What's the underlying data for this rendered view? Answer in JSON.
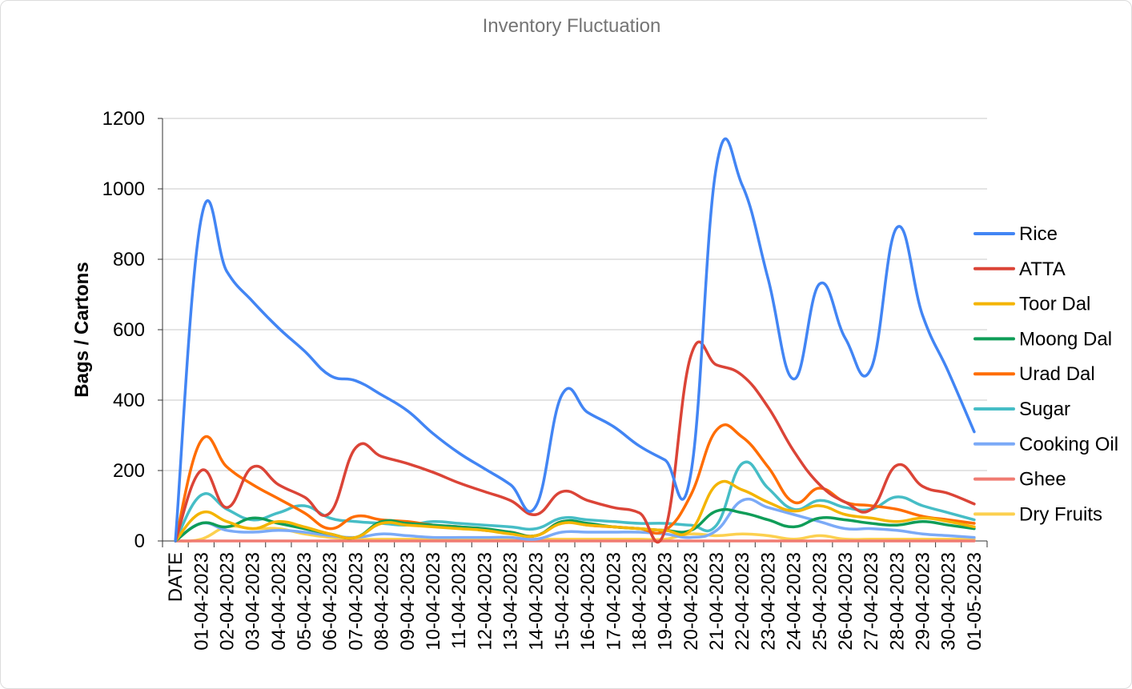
{
  "chart_data": {
    "type": "line",
    "title": "Inventory Fluctuation",
    "xlabel": "",
    "ylabel": "Bags / Cartons",
    "ylim": [
      0,
      1200
    ],
    "yticks": [
      0,
      200,
      400,
      600,
      800,
      1000,
      1200
    ],
    "grid": true,
    "legend_position": "right",
    "categories": [
      "DATE",
      "01-04-2023",
      "02-04-2023",
      "03-04-2023",
      "04-04-2023",
      "05-04-2023",
      "06-04-2023",
      "07-04-2023",
      "08-04-2023",
      "09-04-2023",
      "10-04-2023",
      "11-04-2023",
      "12-04-2023",
      "13-04-2023",
      "14-04-2023",
      "15-04-2023",
      "16-04-2023",
      "17-04-2023",
      "18-04-2023",
      "19-04-2023",
      "20-04-2023",
      "21-04-2023",
      "22-04-2023",
      "23-04-2023",
      "24-04-2023",
      "25-04-2023",
      "26-04-2023",
      "27-04-2023",
      "28-04-2023",
      "29-04-2023",
      "30-04-2023",
      "01-05-2023"
    ],
    "series": [
      {
        "name": "Rice",
        "color": "#4285F4",
        "values": [
          0,
          915,
          765,
          680,
          605,
          540,
          470,
          455,
          415,
          370,
          305,
          250,
          205,
          160,
          100,
          415,
          365,
          325,
          270,
          230,
          190,
          1065,
          1010,
          745,
          460,
          730,
          575,
          490,
          890,
          640,
          480,
          310
        ]
      },
      {
        "name": "ATTA",
        "color": "#DB4437",
        "values": [
          0,
          200,
          95,
          210,
          160,
          125,
          80,
          265,
          240,
          220,
          195,
          165,
          140,
          115,
          75,
          140,
          115,
          95,
          80,
          30,
          525,
          500,
          470,
          380,
          255,
          160,
          110,
          90,
          215,
          155,
          135,
          105
        ]
      },
      {
        "name": "Toor Dal",
        "color": "#F4B400",
        "values": [
          0,
          80,
          55,
          35,
          55,
          40,
          20,
          10,
          50,
          45,
          40,
          35,
          30,
          20,
          15,
          50,
          45,
          40,
          35,
          30,
          30,
          160,
          145,
          110,
          85,
          100,
          75,
          65,
          55,
          65,
          55,
          40
        ]
      },
      {
        "name": "Moong Dal",
        "color": "#0F9D58",
        "values": [
          0,
          50,
          40,
          65,
          50,
          35,
          20,
          10,
          55,
          50,
          45,
          40,
          35,
          25,
          15,
          55,
          50,
          40,
          35,
          30,
          30,
          85,
          80,
          60,
          40,
          65,
          60,
          50,
          45,
          55,
          45,
          35
        ]
      },
      {
        "name": "Urad Dal",
        "color": "#FF6D01",
        "values": [
          0,
          285,
          210,
          160,
          120,
          80,
          35,
          70,
          60,
          55,
          45,
          40,
          30,
          25,
          15,
          55,
          45,
          40,
          35,
          30,
          130,
          315,
          295,
          210,
          110,
          150,
          110,
          100,
          90,
          70,
          60,
          50
        ]
      },
      {
        "name": "Sugar",
        "color": "#46BDC6",
        "values": [
          0,
          130,
          90,
          60,
          80,
          100,
          65,
          55,
          50,
          45,
          55,
          50,
          45,
          40,
          35,
          65,
          60,
          55,
          50,
          50,
          45,
          45,
          220,
          150,
          90,
          115,
          95,
          90,
          125,
          100,
          80,
          60
        ]
      },
      {
        "name": "Cooking Oil",
        "color": "#7BAAF7",
        "values": [
          0,
          50,
          30,
          25,
          30,
          25,
          15,
          10,
          20,
          15,
          10,
          10,
          10,
          10,
          5,
          25,
          25,
          25,
          25,
          20,
          10,
          30,
          115,
          95,
          75,
          55,
          35,
          35,
          30,
          20,
          15,
          10
        ]
      },
      {
        "name": "Ghee",
        "color": "#F07B72",
        "values": [
          0,
          0,
          0,
          0,
          0,
          0,
          0,
          0,
          0,
          0,
          0,
          0,
          0,
          0,
          0,
          0,
          0,
          0,
          0,
          0,
          0,
          0,
          0,
          0,
          0,
          0,
          0,
          0,
          0,
          0,
          0,
          0
        ]
      },
      {
        "name": "Dry Fruits",
        "color": "#FCD04F",
        "values": [
          0,
          5,
          40,
          35,
          35,
          20,
          10,
          5,
          5,
          5,
          5,
          5,
          5,
          5,
          5,
          5,
          5,
          5,
          5,
          5,
          20,
          15,
          20,
          15,
          5,
          15,
          5,
          5,
          5,
          5,
          5,
          5
        ]
      }
    ]
  }
}
